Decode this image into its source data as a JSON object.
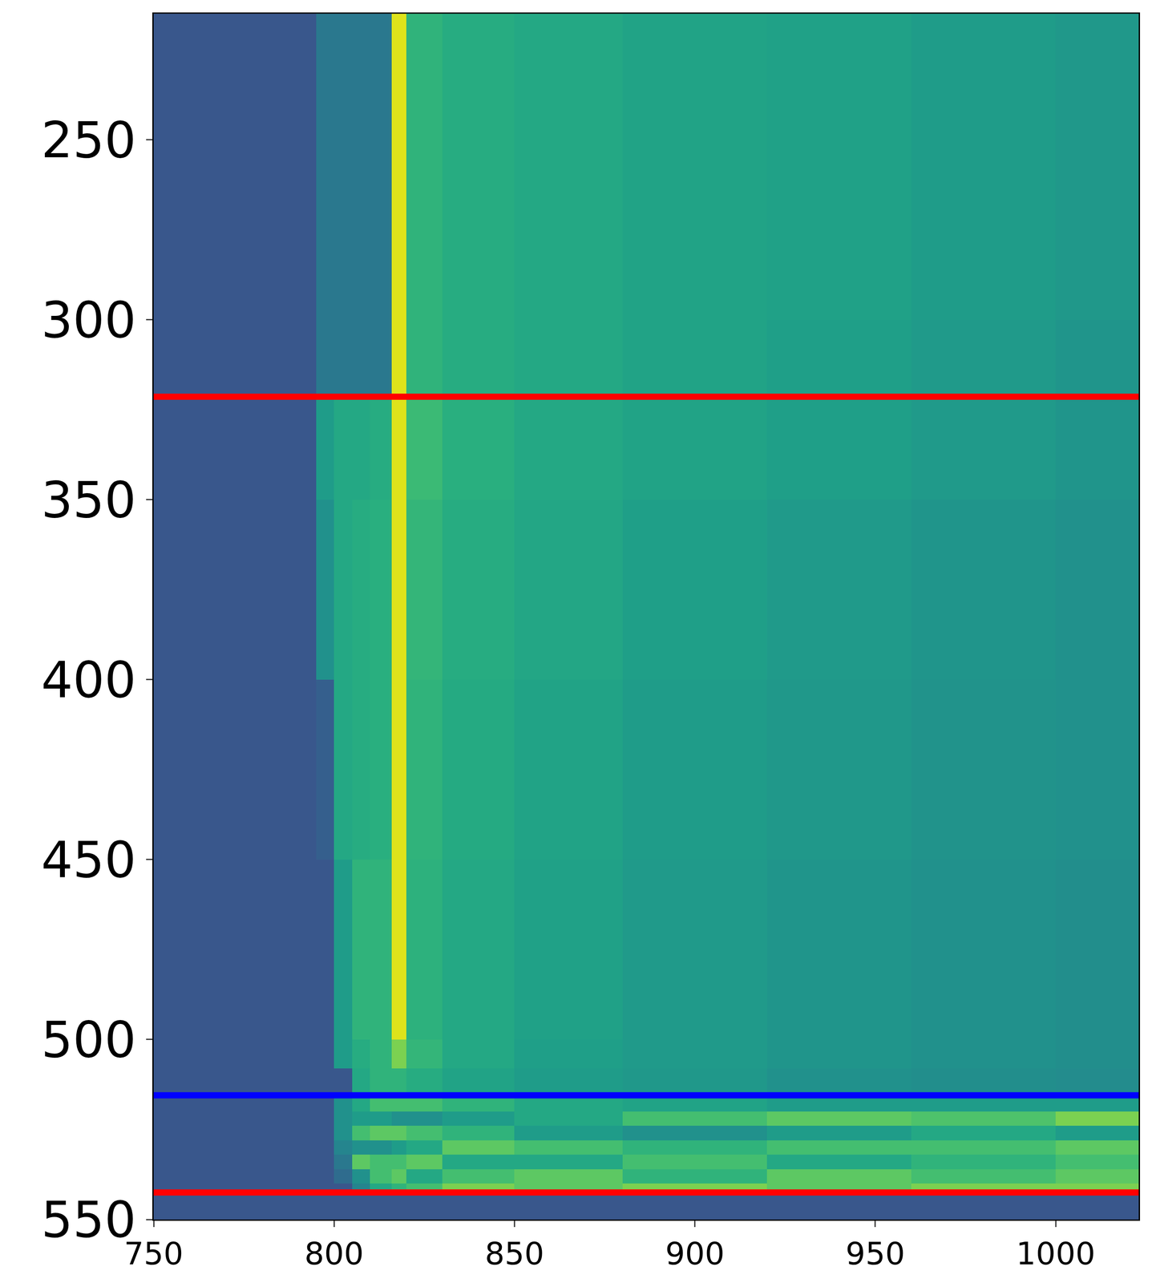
{
  "chart_data": {
    "type": "heatmap",
    "x": [
      750,
      795,
      800,
      805,
      810,
      816,
      820,
      830,
      850,
      880,
      920,
      960,
      1000,
      1023
    ],
    "y": [
      215,
      250,
      300,
      321,
      350,
      400,
      450,
      500,
      508,
      516,
      520,
      524,
      528,
      532,
      536,
      540,
      543,
      550
    ],
    "cells": [
      [
        0.27,
        0.4,
        0.4,
        0.4,
        0.4,
        0.95,
        0.65,
        0.62,
        0.6,
        0.58,
        0.57,
        0.55,
        0.53
      ],
      [
        0.27,
        0.4,
        0.4,
        0.4,
        0.4,
        0.95,
        0.65,
        0.62,
        0.6,
        0.58,
        0.57,
        0.55,
        0.53
      ],
      [
        0.27,
        0.4,
        0.4,
        0.4,
        0.4,
        0.95,
        0.65,
        0.62,
        0.6,
        0.58,
        0.56,
        0.54,
        0.52
      ],
      [
        0.27,
        0.55,
        0.6,
        0.6,
        0.62,
        0.95,
        0.68,
        0.63,
        0.6,
        0.58,
        0.56,
        0.54,
        0.52
      ],
      [
        0.27,
        0.5,
        0.6,
        0.62,
        0.63,
        0.95,
        0.66,
        0.62,
        0.59,
        0.56,
        0.54,
        0.52,
        0.5
      ],
      [
        0.27,
        0.3,
        0.6,
        0.62,
        0.63,
        0.95,
        0.65,
        0.61,
        0.58,
        0.55,
        0.53,
        0.51,
        0.5
      ],
      [
        0.27,
        0.27,
        0.55,
        0.65,
        0.65,
        0.95,
        0.64,
        0.6,
        0.57,
        0.54,
        0.52,
        0.5,
        0.49
      ],
      [
        0.27,
        0.27,
        0.55,
        0.62,
        0.65,
        0.8,
        0.66,
        0.6,
        0.56,
        0.54,
        0.52,
        0.5,
        0.49
      ],
      [
        0.27,
        0.27,
        0.27,
        0.6,
        0.65,
        0.65,
        0.62,
        0.58,
        0.55,
        0.53,
        0.5,
        0.49,
        0.48
      ],
      [
        0.27,
        0.27,
        0.5,
        0.6,
        0.7,
        0.7,
        0.7,
        0.65,
        0.6,
        0.58,
        0.55,
        0.55,
        0.55
      ],
      [
        0.27,
        0.27,
        0.5,
        0.55,
        0.55,
        0.5,
        0.5,
        0.55,
        0.6,
        0.7,
        0.75,
        0.72,
        0.8
      ],
      [
        0.27,
        0.27,
        0.5,
        0.7,
        0.75,
        0.75,
        0.7,
        0.65,
        0.55,
        0.5,
        0.55,
        0.6,
        0.55
      ],
      [
        0.27,
        0.27,
        0.45,
        0.5,
        0.5,
        0.55,
        0.6,
        0.75,
        0.7,
        0.65,
        0.7,
        0.7,
        0.75
      ],
      [
        0.27,
        0.27,
        0.4,
        0.75,
        0.7,
        0.7,
        0.75,
        0.6,
        0.6,
        0.7,
        0.6,
        0.65,
        0.7
      ],
      [
        0.27,
        0.27,
        0.35,
        0.5,
        0.7,
        0.75,
        0.6,
        0.7,
        0.75,
        0.65,
        0.75,
        0.7,
        0.75
      ],
      [
        0.27,
        0.27,
        0.27,
        0.45,
        0.6,
        0.65,
        0.7,
        0.8,
        0.75,
        0.8,
        0.75,
        0.8,
        0.8
      ],
      [
        0.27,
        0.27,
        0.27,
        0.27,
        0.27,
        0.27,
        0.27,
        0.27,
        0.27,
        0.27,
        0.27,
        0.27,
        0.27
      ]
    ],
    "zlim": [
      0,
      1
    ],
    "color": "Viridis",
    "xlim": [
      750,
      1023
    ],
    "ylim": [
      550,
      215
    ],
    "xticks": [
      750,
      800,
      850,
      900,
      950,
      1000
    ],
    "yticks": [
      250,
      300,
      350,
      400,
      450,
      500,
      550
    ],
    "hlines": [
      {
        "y": 321.4,
        "color": "red"
      },
      {
        "y": 515.5,
        "color": "blue"
      },
      {
        "y": 542.5,
        "color": "red"
      }
    ],
    "grid": false
  }
}
